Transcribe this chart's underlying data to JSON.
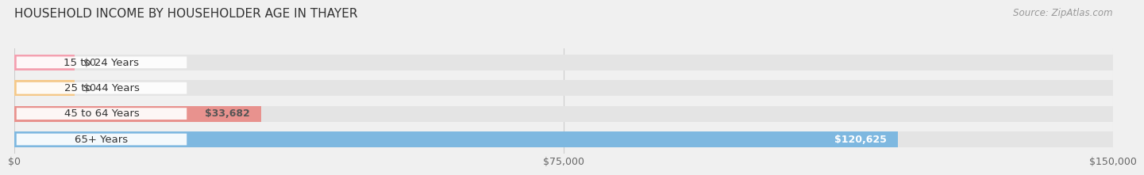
{
  "title": "HOUSEHOLD INCOME BY HOUSEHOLDER AGE IN THAYER",
  "source": "Source: ZipAtlas.com",
  "categories": [
    "15 to 24 Years",
    "25 to 44 Years",
    "45 to 64 Years",
    "65+ Years"
  ],
  "values": [
    0,
    0,
    33682,
    120625
  ],
  "bar_colors": [
    "#f4a0b0",
    "#f5c98a",
    "#e8928e",
    "#7eb8e0"
  ],
  "label_colors": [
    "#555555",
    "#555555",
    "#555555",
    "#ffffff"
  ],
  "value_labels": [
    "$0",
    "$0",
    "$33,682",
    "$120,625"
  ],
  "xlim": [
    0,
    150000
  ],
  "xtick_labels": [
    "$0",
    "$75,000",
    "$150,000"
  ],
  "bar_height": 0.62,
  "background_color": "#f0f0f0",
  "bar_bg_color": "#e4e4e4",
  "title_fontsize": 11,
  "source_fontsize": 8.5,
  "label_fontsize": 9.5,
  "tick_fontsize": 9,
  "value_label_fontsize": 9
}
